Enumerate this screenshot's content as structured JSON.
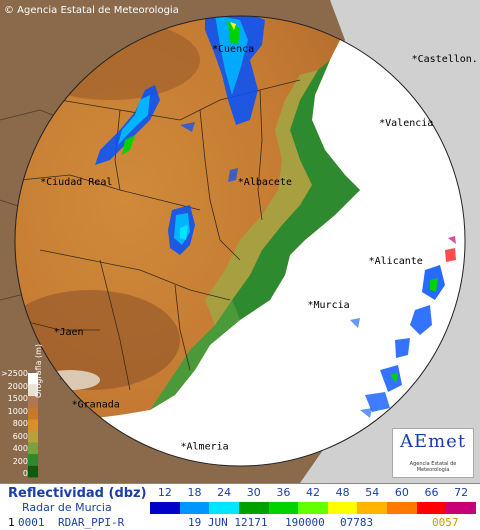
{
  "credit": "© Agencia Estatal de Meteorologia",
  "cities": [
    {
      "name": "Cuenca",
      "lon": -2.13,
      "lat": 40.07
    },
    {
      "name": "Castellon.",
      "lon": -0.04,
      "lat": 39.99
    },
    {
      "name": "Valencia",
      "lon": -0.38,
      "lat": 39.47
    },
    {
      "name": "Ciudad Real",
      "lon": -3.93,
      "lat": 38.99
    },
    {
      "name": "Albacete",
      "lon": -1.86,
      "lat": 38.99
    },
    {
      "name": "Alicante",
      "lon": -0.49,
      "lat": 38.35
    },
    {
      "name": "Murcia",
      "lon": -1.13,
      "lat": 37.99
    },
    {
      "name": "Jaen",
      "lon": -3.79,
      "lat": 37.77
    },
    {
      "name": "Granada",
      "lon": -3.6,
      "lat": 37.18
    },
    {
      "name": "Almeria",
      "lon": -2.46,
      "lat": 36.84
    }
  ],
  "orography": {
    "title": "Orografia (m)",
    "ticks": [
      ">2500",
      "2000",
      "1500",
      "1000",
      "800",
      "600",
      "400",
      "200",
      "0"
    ],
    "colors": [
      "#ffffff",
      "#e8e2d6",
      "#b07850",
      "#c8782a",
      "#d8902e",
      "#b8a040",
      "#7aa040",
      "#2e8a2e",
      "#105a10"
    ]
  },
  "legend": {
    "title": "Reflectividad (dbz)",
    "subtitle": "Radar de Murcia",
    "levels": [
      "12",
      "18",
      "24",
      "30",
      "36",
      "42",
      "48",
      "54",
      "60",
      "66",
      "72"
    ],
    "colors": [
      "#0000c8",
      "#0096ff",
      "#00e6ff",
      "#00a000",
      "#00d200",
      "#64ff00",
      "#ffff00",
      "#ffb400",
      "#ff7800",
      "#ff0000",
      "#c80078"
    ]
  },
  "status": {
    "channel": "0001",
    "product": "RDAR_PPI-R",
    "date": "19 JUN 12171",
    "code": "190000",
    "extra": "07783",
    "tail": "0057"
  },
  "logo": {
    "name": "AEmet",
    "subtitle": "Agencia Estatal de Meteorología"
  }
}
